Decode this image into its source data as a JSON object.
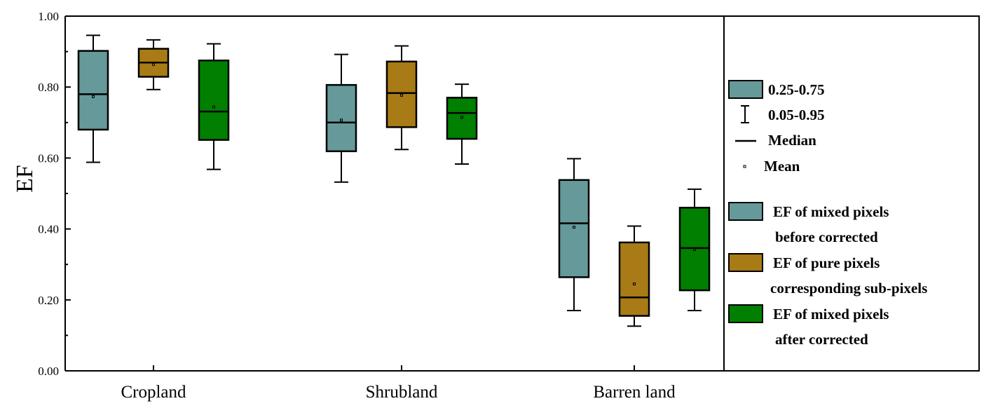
{
  "chart_data": {
    "type": "box",
    "ylabel": "EF",
    "ylim": [
      0,
      1
    ],
    "yticks": [
      "0.00",
      "0.20",
      "0.40",
      "0.60",
      "0.80",
      "1.00"
    ],
    "categories": [
      "Cropland",
      "Shrubland",
      "Barren land"
    ],
    "series": [
      {
        "name": "EF of mixed pixels before corrected",
        "color": "#669999",
        "stats": [
          {
            "p05": 0.588,
            "q1": 0.68,
            "median": 0.78,
            "q3": 0.902,
            "p95": 0.946,
            "mean": 0.773
          },
          {
            "p05": 0.532,
            "q1": 0.619,
            "median": 0.7,
            "q3": 0.806,
            "p95": 0.892,
            "mean": 0.707
          },
          {
            "p05": 0.17,
            "q1": 0.264,
            "median": 0.416,
            "q3": 0.538,
            "p95": 0.598,
            "mean": 0.405
          }
        ]
      },
      {
        "name": "EF of pure pixels corresponding sub-pixels",
        "color": "#a87b16",
        "stats": [
          {
            "p05": 0.793,
            "q1": 0.829,
            "median": 0.869,
            "q3": 0.908,
            "p95": 0.933,
            "mean": 0.864
          },
          {
            "p05": 0.624,
            "q1": 0.687,
            "median": 0.783,
            "q3": 0.872,
            "p95": 0.916,
            "mean": 0.777
          },
          {
            "p05": 0.126,
            "q1": 0.155,
            "median": 0.207,
            "q3": 0.362,
            "p95": 0.408,
            "mean": 0.245
          }
        ]
      },
      {
        "name": "EF of mixed pixels after corrected",
        "color": "#007f00",
        "stats": [
          {
            "p05": 0.568,
            "q1": 0.651,
            "median": 0.731,
            "q3": 0.875,
            "p95": 0.922,
            "mean": 0.744
          },
          {
            "p05": 0.583,
            "q1": 0.654,
            "median": 0.727,
            "q3": 0.77,
            "p95": 0.808,
            "mean": 0.715
          },
          {
            "p05": 0.17,
            "q1": 0.227,
            "median": 0.346,
            "q3": 0.46,
            "p95": 0.512,
            "mean": 0.342
          }
        ]
      }
    ],
    "legend": {
      "box_label": "0.25-0.75",
      "whisker_label": "0.05-0.95",
      "median_label": "Median",
      "mean_label": "Mean",
      "series_labels": [
        [
          "EF of mixed pixels",
          "before corrected"
        ],
        [
          "EF of pure pixels",
          "corresponding sub-pixels"
        ],
        [
          "EF of mixed pixels",
          "after corrected"
        ]
      ]
    }
  }
}
